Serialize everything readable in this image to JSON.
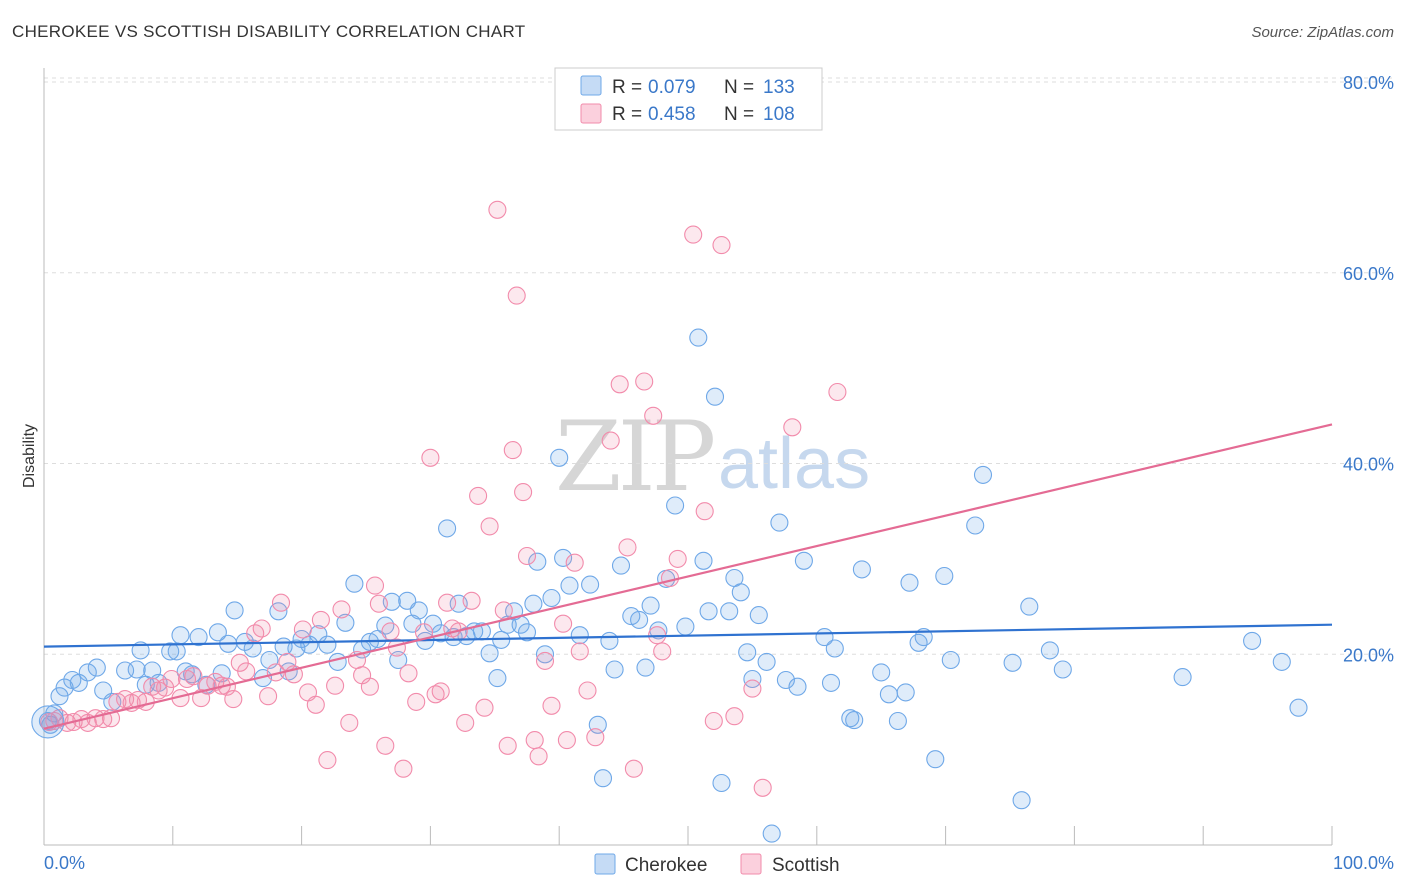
{
  "header": {
    "title": "CHEROKEE VS SCOTTISH DISABILITY CORRELATION CHART",
    "source": "Source: ZipAtlas.com"
  },
  "watermark": {
    "zip": "ZIP",
    "atlas": "atlas"
  },
  "legend_top": {
    "rows": [
      {
        "r_label": "R =",
        "r_value": "0.079",
        "n_label": "N =",
        "n_value": "133",
        "color": "#6fa8e8"
      },
      {
        "r_label": "R =",
        "r_value": "0.458",
        "n_label": "N =",
        "n_value": "108",
        "color": "#f28bab"
      }
    ]
  },
  "legend_bottom": [
    {
      "label": "Cherokee",
      "color": "#6fa8e8"
    },
    {
      "label": "Scottish",
      "color": "#f28bab"
    }
  ],
  "chart_data": {
    "type": "scatter",
    "title": "CHEROKEE VS SCOTTISH DISABILITY CORRELATION CHART",
    "xlabel": "",
    "ylabel": "Disability",
    "xlim": [
      0,
      100
    ],
    "ylim": [
      0,
      82
    ],
    "x_tick_labels": [
      "0.0%",
      "100.0%"
    ],
    "y_ticks": [
      20,
      40,
      60,
      80
    ],
    "y_tick_labels": [
      "20.0%",
      "40.0%",
      "60.0%",
      "80.0%"
    ],
    "grid": true,
    "legend_position": "top-center",
    "series": [
      {
        "name": "Cherokee",
        "color": "#6fa8e8",
        "trend": {
          "x": [
            0,
            100
          ],
          "y": [
            20.8,
            23.1
          ]
        },
        "points": [
          [
            0.3,
            13.0
          ],
          [
            0.5,
            12.6
          ],
          [
            0.8,
            13.8
          ],
          [
            1.2,
            15.6
          ],
          [
            1.6,
            16.5
          ],
          [
            2.2,
            17.3
          ],
          [
            2.7,
            17.0
          ],
          [
            3.4,
            18.1
          ],
          [
            4.1,
            18.6
          ],
          [
            4.6,
            16.2
          ],
          [
            5.3,
            15.0
          ],
          [
            6.3,
            18.3
          ],
          [
            7.2,
            18.4
          ],
          [
            7.5,
            20.4
          ],
          [
            7.9,
            16.8
          ],
          [
            8.4,
            18.3
          ],
          [
            8.9,
            17.0
          ],
          [
            9.8,
            20.3
          ],
          [
            10.3,
            20.3
          ],
          [
            10.6,
            22.0
          ],
          [
            11.0,
            18.2
          ],
          [
            11.5,
            17.9
          ],
          [
            12.0,
            21.8
          ],
          [
            12.6,
            16.8
          ],
          [
            13.5,
            22.3
          ],
          [
            13.8,
            18.0
          ],
          [
            14.3,
            21.1
          ],
          [
            14.8,
            24.6
          ],
          [
            15.6,
            21.3
          ],
          [
            16.2,
            20.6
          ],
          [
            17.0,
            17.5
          ],
          [
            17.5,
            19.4
          ],
          [
            18.2,
            24.5
          ],
          [
            18.6,
            20.8
          ],
          [
            19.0,
            18.2
          ],
          [
            19.6,
            20.6
          ],
          [
            20.0,
            21.6
          ],
          [
            20.6,
            21.0
          ],
          [
            21.3,
            22.1
          ],
          [
            22.0,
            21.0
          ],
          [
            22.8,
            19.2
          ],
          [
            23.4,
            23.3
          ],
          [
            24.1,
            27.4
          ],
          [
            24.7,
            20.5
          ],
          [
            25.3,
            21.3
          ],
          [
            25.9,
            21.6
          ],
          [
            26.5,
            23.0
          ],
          [
            27.0,
            25.5
          ],
          [
            27.5,
            19.4
          ],
          [
            28.2,
            25.6
          ],
          [
            28.6,
            23.2
          ],
          [
            29.1,
            24.6
          ],
          [
            29.6,
            21.4
          ],
          [
            30.2,
            23.2
          ],
          [
            30.8,
            22.2
          ],
          [
            31.3,
            33.2
          ],
          [
            31.8,
            21.8
          ],
          [
            32.2,
            25.3
          ],
          [
            32.8,
            21.9
          ],
          [
            33.4,
            22.4
          ],
          [
            34.0,
            22.4
          ],
          [
            34.6,
            20.1
          ],
          [
            35.2,
            17.5
          ],
          [
            35.5,
            21.5
          ],
          [
            36.0,
            23.1
          ],
          [
            36.5,
            24.5
          ],
          [
            37.0,
            23.1
          ],
          [
            37.5,
            22.3
          ],
          [
            38.0,
            25.3
          ],
          [
            38.3,
            29.7
          ],
          [
            38.9,
            20.0
          ],
          [
            39.4,
            25.9
          ],
          [
            40.0,
            40.6
          ],
          [
            40.3,
            30.1
          ],
          [
            40.8,
            27.2
          ],
          [
            41.6,
            22.0
          ],
          [
            42.4,
            27.3
          ],
          [
            43.0,
            12.6
          ],
          [
            43.4,
            7.0
          ],
          [
            43.9,
            21.4
          ],
          [
            44.3,
            18.4
          ],
          [
            44.8,
            29.3
          ],
          [
            45.6,
            24.0
          ],
          [
            46.2,
            23.6
          ],
          [
            46.7,
            18.6
          ],
          [
            47.1,
            25.1
          ],
          [
            47.7,
            22.5
          ],
          [
            48.3,
            27.9
          ],
          [
            49.0,
            35.6
          ],
          [
            49.8,
            22.9
          ],
          [
            50.8,
            53.2
          ],
          [
            51.2,
            29.8
          ],
          [
            51.6,
            24.5
          ],
          [
            52.1,
            47.0
          ],
          [
            52.6,
            6.5
          ],
          [
            53.2,
            24.5
          ],
          [
            53.6,
            28.0
          ],
          [
            54.1,
            26.5
          ],
          [
            54.6,
            20.2
          ],
          [
            55.0,
            17.4
          ],
          [
            55.5,
            24.1
          ],
          [
            56.1,
            19.2
          ],
          [
            56.5,
            1.2
          ],
          [
            57.1,
            33.8
          ],
          [
            57.6,
            17.3
          ],
          [
            58.5,
            16.6
          ],
          [
            59.0,
            29.8
          ],
          [
            60.6,
            21.8
          ],
          [
            61.1,
            17.0
          ],
          [
            61.4,
            20.6
          ],
          [
            62.6,
            13.3
          ],
          [
            62.9,
            13.1
          ],
          [
            63.5,
            28.9
          ],
          [
            65.0,
            18.1
          ],
          [
            65.6,
            15.8
          ],
          [
            66.3,
            13.0
          ],
          [
            66.9,
            16.0
          ],
          [
            67.2,
            27.5
          ],
          [
            67.9,
            21.2
          ],
          [
            68.3,
            21.8
          ],
          [
            69.2,
            9.0
          ],
          [
            69.9,
            28.2
          ],
          [
            70.4,
            19.4
          ],
          [
            72.3,
            33.5
          ],
          [
            72.9,
            38.8
          ],
          [
            75.2,
            19.1
          ],
          [
            75.9,
            4.7
          ],
          [
            76.5,
            25.0
          ],
          [
            78.1,
            20.4
          ],
          [
            79.1,
            18.4
          ],
          [
            88.4,
            17.6
          ],
          [
            93.8,
            21.4
          ],
          [
            96.1,
            19.2
          ],
          [
            97.4,
            14.4
          ]
        ]
      },
      {
        "name": "Scottish",
        "color": "#f28bab",
        "trend": {
          "x": [
            0,
            100
          ],
          "y": [
            12.2,
            44.1
          ]
        },
        "points": [
          [
            0.4,
            12.9
          ],
          [
            0.8,
            13.0
          ],
          [
            1.2,
            13.3
          ],
          [
            1.8,
            12.8
          ],
          [
            2.3,
            12.9
          ],
          [
            2.9,
            13.2
          ],
          [
            3.4,
            12.8
          ],
          [
            4.0,
            13.3
          ],
          [
            4.6,
            13.2
          ],
          [
            5.2,
            13.3
          ],
          [
            5.7,
            15.0
          ],
          [
            6.3,
            15.3
          ],
          [
            6.8,
            14.9
          ],
          [
            7.3,
            15.2
          ],
          [
            7.9,
            15.0
          ],
          [
            8.4,
            16.6
          ],
          [
            8.9,
            16.2
          ],
          [
            9.4,
            16.5
          ],
          [
            9.9,
            17.4
          ],
          [
            10.6,
            15.4
          ],
          [
            11.1,
            17.4
          ],
          [
            11.6,
            17.7
          ],
          [
            12.2,
            15.4
          ],
          [
            12.7,
            16.7
          ],
          [
            13.3,
            17.1
          ],
          [
            13.8,
            16.7
          ],
          [
            14.2,
            16.6
          ],
          [
            14.7,
            15.3
          ],
          [
            15.2,
            19.1
          ],
          [
            15.7,
            18.2
          ],
          [
            16.4,
            22.2
          ],
          [
            16.9,
            22.7
          ],
          [
            17.4,
            15.6
          ],
          [
            18.0,
            18.1
          ],
          [
            18.4,
            25.4
          ],
          [
            18.9,
            19.2
          ],
          [
            19.4,
            17.9
          ],
          [
            20.1,
            22.6
          ],
          [
            20.5,
            16.0
          ],
          [
            21.1,
            14.7
          ],
          [
            21.5,
            23.6
          ],
          [
            22.0,
            8.9
          ],
          [
            22.6,
            16.7
          ],
          [
            23.1,
            24.7
          ],
          [
            23.7,
            12.8
          ],
          [
            24.3,
            19.4
          ],
          [
            24.7,
            17.8
          ],
          [
            25.3,
            16.6
          ],
          [
            25.7,
            27.2
          ],
          [
            26.0,
            25.3
          ],
          [
            26.5,
            10.4
          ],
          [
            26.9,
            22.4
          ],
          [
            27.4,
            20.7
          ],
          [
            27.9,
            8.0
          ],
          [
            28.3,
            18.0
          ],
          [
            28.9,
            15.0
          ],
          [
            29.5,
            22.3
          ],
          [
            30.0,
            40.6
          ],
          [
            30.4,
            15.8
          ],
          [
            30.8,
            16.1
          ],
          [
            31.3,
            25.4
          ],
          [
            31.7,
            22.7
          ],
          [
            32.2,
            22.4
          ],
          [
            32.7,
            12.8
          ],
          [
            33.2,
            25.6
          ],
          [
            33.7,
            36.6
          ],
          [
            34.2,
            14.4
          ],
          [
            34.6,
            33.4
          ],
          [
            35.2,
            66.6
          ],
          [
            35.7,
            24.6
          ],
          [
            36.0,
            10.4
          ],
          [
            36.4,
            41.4
          ],
          [
            36.7,
            57.6
          ],
          [
            37.2,
            37.0
          ],
          [
            37.5,
            30.3
          ],
          [
            38.1,
            11.0
          ],
          [
            38.4,
            9.3
          ],
          [
            38.9,
            19.3
          ],
          [
            39.4,
            14.6
          ],
          [
            40.3,
            23.2
          ],
          [
            40.6,
            11.0
          ],
          [
            41.2,
            29.6
          ],
          [
            41.6,
            20.3
          ],
          [
            42.2,
            16.2
          ],
          [
            42.8,
            11.3
          ],
          [
            44.0,
            42.4
          ],
          [
            44.7,
            48.3
          ],
          [
            45.3,
            31.2
          ],
          [
            45.8,
            8.0
          ],
          [
            46.6,
            48.6
          ],
          [
            47.3,
            45.0
          ],
          [
            47.6,
            22.0
          ],
          [
            48.0,
            20.3
          ],
          [
            48.6,
            28.0
          ],
          [
            49.2,
            30.0
          ],
          [
            50.4,
            64.0
          ],
          [
            51.3,
            35.0
          ],
          [
            52.0,
            13.0
          ],
          [
            52.6,
            62.9
          ],
          [
            53.6,
            13.5
          ],
          [
            55.0,
            16.4
          ],
          [
            55.8,
            6.0
          ],
          [
            58.1,
            43.8
          ],
          [
            61.6,
            47.5
          ]
        ]
      }
    ]
  }
}
